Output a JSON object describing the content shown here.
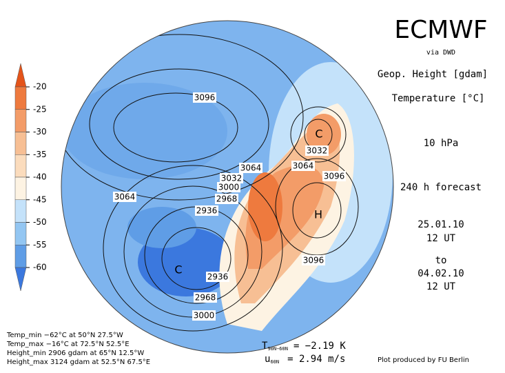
{
  "header": {
    "title": "ECMWF",
    "source": "via DWD",
    "field_height": "Geop. Height [gdam]",
    "field_temp": "Temperature [°C]",
    "level": "10 hPa",
    "forecast": "240 h forecast",
    "start_date": "25.01.10",
    "start_time": "12 UT",
    "to": "to",
    "end_date": "04.02.10",
    "end_time": "12 UT"
  },
  "colorbar": {
    "ticks": [
      -20,
      -25,
      -30,
      -35,
      -40,
      -45,
      -50,
      -55,
      -60
    ],
    "colors": [
      "#e4541a",
      "#ee7a3e",
      "#f39c68",
      "#f7bf94",
      "#fbdcbd",
      "#fdf3e3",
      "#c4e2fa",
      "#93c6f2",
      "#5f9de6",
      "#3b78de"
    ]
  },
  "contour_labels": [
    "3096",
    "3064",
    "3064",
    "3032",
    "3000",
    "2968",
    "2936",
    "3032",
    "3064",
    "3096",
    "3096",
    "2936",
    "2968",
    "3000"
  ],
  "centers": [
    "H",
    "C",
    "C"
  ],
  "stats": [
    "Temp_min −62°C at 50°N 27.5°W",
    "Temp_max −16°C at 72.5°N 52.5°E",
    "Height_min 2906 gdam at 65°N 12.5°W",
    "Height_max 3124 gdam at 52.5°N 67.5°E"
  ],
  "indices": {
    "t_symbol": "T",
    "t_sub": "90N−60N",
    "t_value": "= −2.19 K",
    "u_symbol": "u",
    "u_sub": "60N",
    "u_value": "= 2.94 m/s"
  },
  "credit": "Plot produced by FU Berlin"
}
